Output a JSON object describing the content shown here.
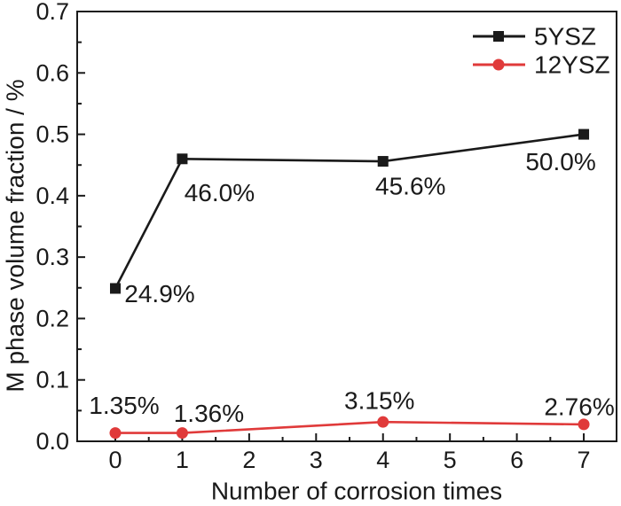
{
  "figure": {
    "background_color": "#ffffff",
    "axis_color": "#1a1a1a",
    "accent_red": "#e03a3a"
  },
  "chart_data": {
    "type": "line",
    "title": "",
    "xlabel": "Number of corrosion times",
    "ylabel": "M phase volume fraction / %",
    "xlim": [
      -0.57,
      7.49
    ],
    "ylim": [
      0,
      0.7
    ],
    "x_major_ticks": [
      0,
      1,
      2,
      3,
      4,
      5,
      6,
      7
    ],
    "x_tick_labels": [
      "0",
      "1",
      "2",
      "3",
      "4",
      "5",
      "6",
      "7"
    ],
    "y_major_ticks": [
      0.0,
      0.1,
      0.2,
      0.3,
      0.4,
      0.5,
      0.6,
      0.7
    ],
    "y_tick_labels": [
      "0.0",
      "0.1",
      "0.2",
      "0.3",
      "0.4",
      "0.5",
      "0.6",
      "0.7"
    ],
    "minor_ticks": "midpoints-between-majors",
    "grid": false,
    "legend_position": "top-right-inside",
    "series": [
      {
        "name": "5YSZ",
        "color": "#1a1a1a",
        "marker": "square",
        "x": [
          0,
          1,
          4,
          7
        ],
        "values": [
          0.249,
          0.46,
          0.456,
          0.5
        ],
        "point_labels": [
          "24.9%",
          "46.0%",
          "45.6%",
          "50.0%"
        ],
        "label_offsets": [
          [
            50,
            6
          ],
          [
            42,
            38
          ],
          [
            31,
            28
          ],
          [
            -26,
            31
          ]
        ]
      },
      {
        "name": "12YSZ",
        "color": "#e03a3a",
        "marker": "circle",
        "x": [
          0,
          1,
          4,
          7
        ],
        "values": [
          0.0135,
          0.0136,
          0.0315,
          0.0276
        ],
        "point_labels": [
          "1.35%",
          "1.36%",
          "3.15%",
          "2.76%"
        ],
        "label_offsets": [
          [
            10,
            -31
          ],
          [
            30,
            -22
          ],
          [
            -4,
            -24
          ],
          [
            -5,
            -20
          ]
        ]
      }
    ]
  }
}
